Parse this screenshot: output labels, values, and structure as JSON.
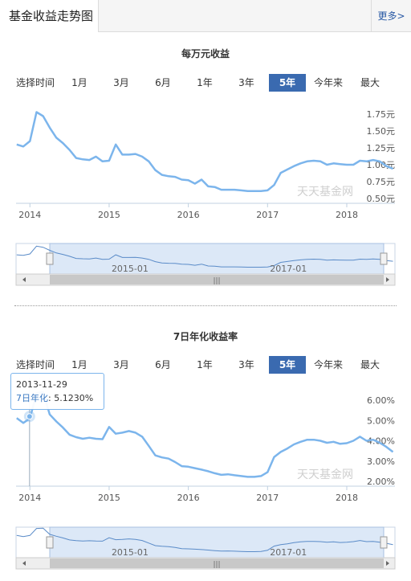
{
  "header": {
    "tab_label": "基金收益走势图",
    "more_label": "更多>"
  },
  "range": {
    "label": "选择时间",
    "buttons": [
      "1月",
      "3月",
      "6月",
      "1年",
      "3年",
      "5年",
      "今年来",
      "最大"
    ],
    "active": "5年"
  },
  "watermark": "天天基金网",
  "tooltip": {
    "date": "2013-11-29",
    "series": "7日年化",
    "value": "5.1230%"
  },
  "colors": {
    "line": "#7cb5ec",
    "active_button": "#3a6ab0",
    "navigator_fill": "#dce8f7"
  },
  "chart_data": [
    {
      "type": "line",
      "title": "每万元收益",
      "x_ticks": [
        "2014",
        "2015",
        "2016",
        "2017",
        "2018"
      ],
      "y_ticks": [
        "0.50元",
        "0.75元",
        "1.00元",
        "1.25元",
        "1.50元",
        "1.75元"
      ],
      "ylim": [
        0.5,
        1.75
      ],
      "x_range": [
        "2013-11",
        "2018-08"
      ],
      "series": [
        {
          "x": [
            "2013-11",
            "2013-12",
            "2014-01",
            "2014-02",
            "2014-03",
            "2014-04",
            "2014-05",
            "2014-06",
            "2014-07",
            "2014-08",
            "2014-09",
            "2014-10",
            "2014-11",
            "2014-12",
            "2015-01",
            "2015-02",
            "2015-03",
            "2015-04",
            "2015-05",
            "2015-06",
            "2015-07",
            "2015-08",
            "2015-09",
            "2015-10",
            "2015-11",
            "2015-12",
            "2016-01",
            "2016-02",
            "2016-03",
            "2016-04",
            "2016-05",
            "2016-06",
            "2016-07",
            "2016-08",
            "2016-09",
            "2016-10",
            "2016-11",
            "2016-12",
            "2017-01",
            "2017-02",
            "2017-03",
            "2017-04",
            "2017-05",
            "2017-06",
            "2017-07",
            "2017-08",
            "2017-09",
            "2017-10",
            "2017-11",
            "2017-12",
            "2018-01",
            "2018-02",
            "2018-03",
            "2018-04",
            "2018-05",
            "2018-06",
            "2018-07",
            "2018-08"
          ],
          "values": [
            1.3,
            1.27,
            1.35,
            1.78,
            1.72,
            1.55,
            1.4,
            1.32,
            1.22,
            1.1,
            1.08,
            1.07,
            1.12,
            1.05,
            1.06,
            1.3,
            1.15,
            1.15,
            1.16,
            1.12,
            1.05,
            0.92,
            0.85,
            0.83,
            0.82,
            0.78,
            0.77,
            0.72,
            0.78,
            0.68,
            0.67,
            0.63,
            0.63,
            0.63,
            0.62,
            0.61,
            0.61,
            0.61,
            0.62,
            0.7,
            0.88,
            0.93,
            0.98,
            1.02,
            1.05,
            1.06,
            1.05,
            1.0,
            1.02,
            1.01,
            1.0,
            1.0,
            1.06,
            1.05,
            1.07,
            1.05,
            0.98,
            0.94
          ]
        }
      ]
    },
    {
      "type": "line",
      "title": "7日年化收益率",
      "x_ticks": [
        "2014",
        "2015",
        "2016",
        "2017",
        "2018"
      ],
      "y_ticks": [
        "2.00%",
        "3.00%",
        "4.00%",
        "5.00%",
        "6.00%"
      ],
      "ylim": [
        2,
        6
      ],
      "x_range": [
        "2013-11",
        "2018-08"
      ],
      "series": [
        {
          "x": [
            "2013-11",
            "2013-12",
            "2014-01",
            "2014-02",
            "2014-03",
            "2014-04",
            "2014-05",
            "2014-06",
            "2014-07",
            "2014-08",
            "2014-09",
            "2014-10",
            "2014-11",
            "2014-12",
            "2015-01",
            "2015-02",
            "2015-03",
            "2015-04",
            "2015-05",
            "2015-06",
            "2015-07",
            "2015-08",
            "2015-09",
            "2015-10",
            "2015-11",
            "2015-12",
            "2016-01",
            "2016-02",
            "2016-03",
            "2016-04",
            "2016-05",
            "2016-06",
            "2016-07",
            "2016-08",
            "2016-09",
            "2016-10",
            "2016-11",
            "2016-12",
            "2017-01",
            "2017-02",
            "2017-03",
            "2017-04",
            "2017-05",
            "2017-06",
            "2017-07",
            "2017-08",
            "2017-09",
            "2017-10",
            "2017-11",
            "2017-12",
            "2018-01",
            "2018-02",
            "2018-03",
            "2018-04",
            "2018-05",
            "2018-06",
            "2018-07",
            "2018-08"
          ],
          "values": [
            5.12,
            4.88,
            5.1,
            6.35,
            6.4,
            5.3,
            4.95,
            4.65,
            4.3,
            4.18,
            4.1,
            4.15,
            4.1,
            4.08,
            4.68,
            4.35,
            4.4,
            4.48,
            4.4,
            4.2,
            3.75,
            3.28,
            3.18,
            3.12,
            2.95,
            2.75,
            2.72,
            2.65,
            2.58,
            2.5,
            2.4,
            2.32,
            2.35,
            2.3,
            2.26,
            2.22,
            2.22,
            2.26,
            2.45,
            3.2,
            3.45,
            3.62,
            3.82,
            3.95,
            4.05,
            4.05,
            4.0,
            3.9,
            3.95,
            3.85,
            3.88,
            4.0,
            4.2,
            4.0,
            4.05,
            3.9,
            3.7,
            3.45
          ]
        }
      ]
    }
  ],
  "navigator": {
    "x_ticks": [
      "2015-01",
      "2017-01"
    ],
    "scrollbar_grip": "|||"
  }
}
